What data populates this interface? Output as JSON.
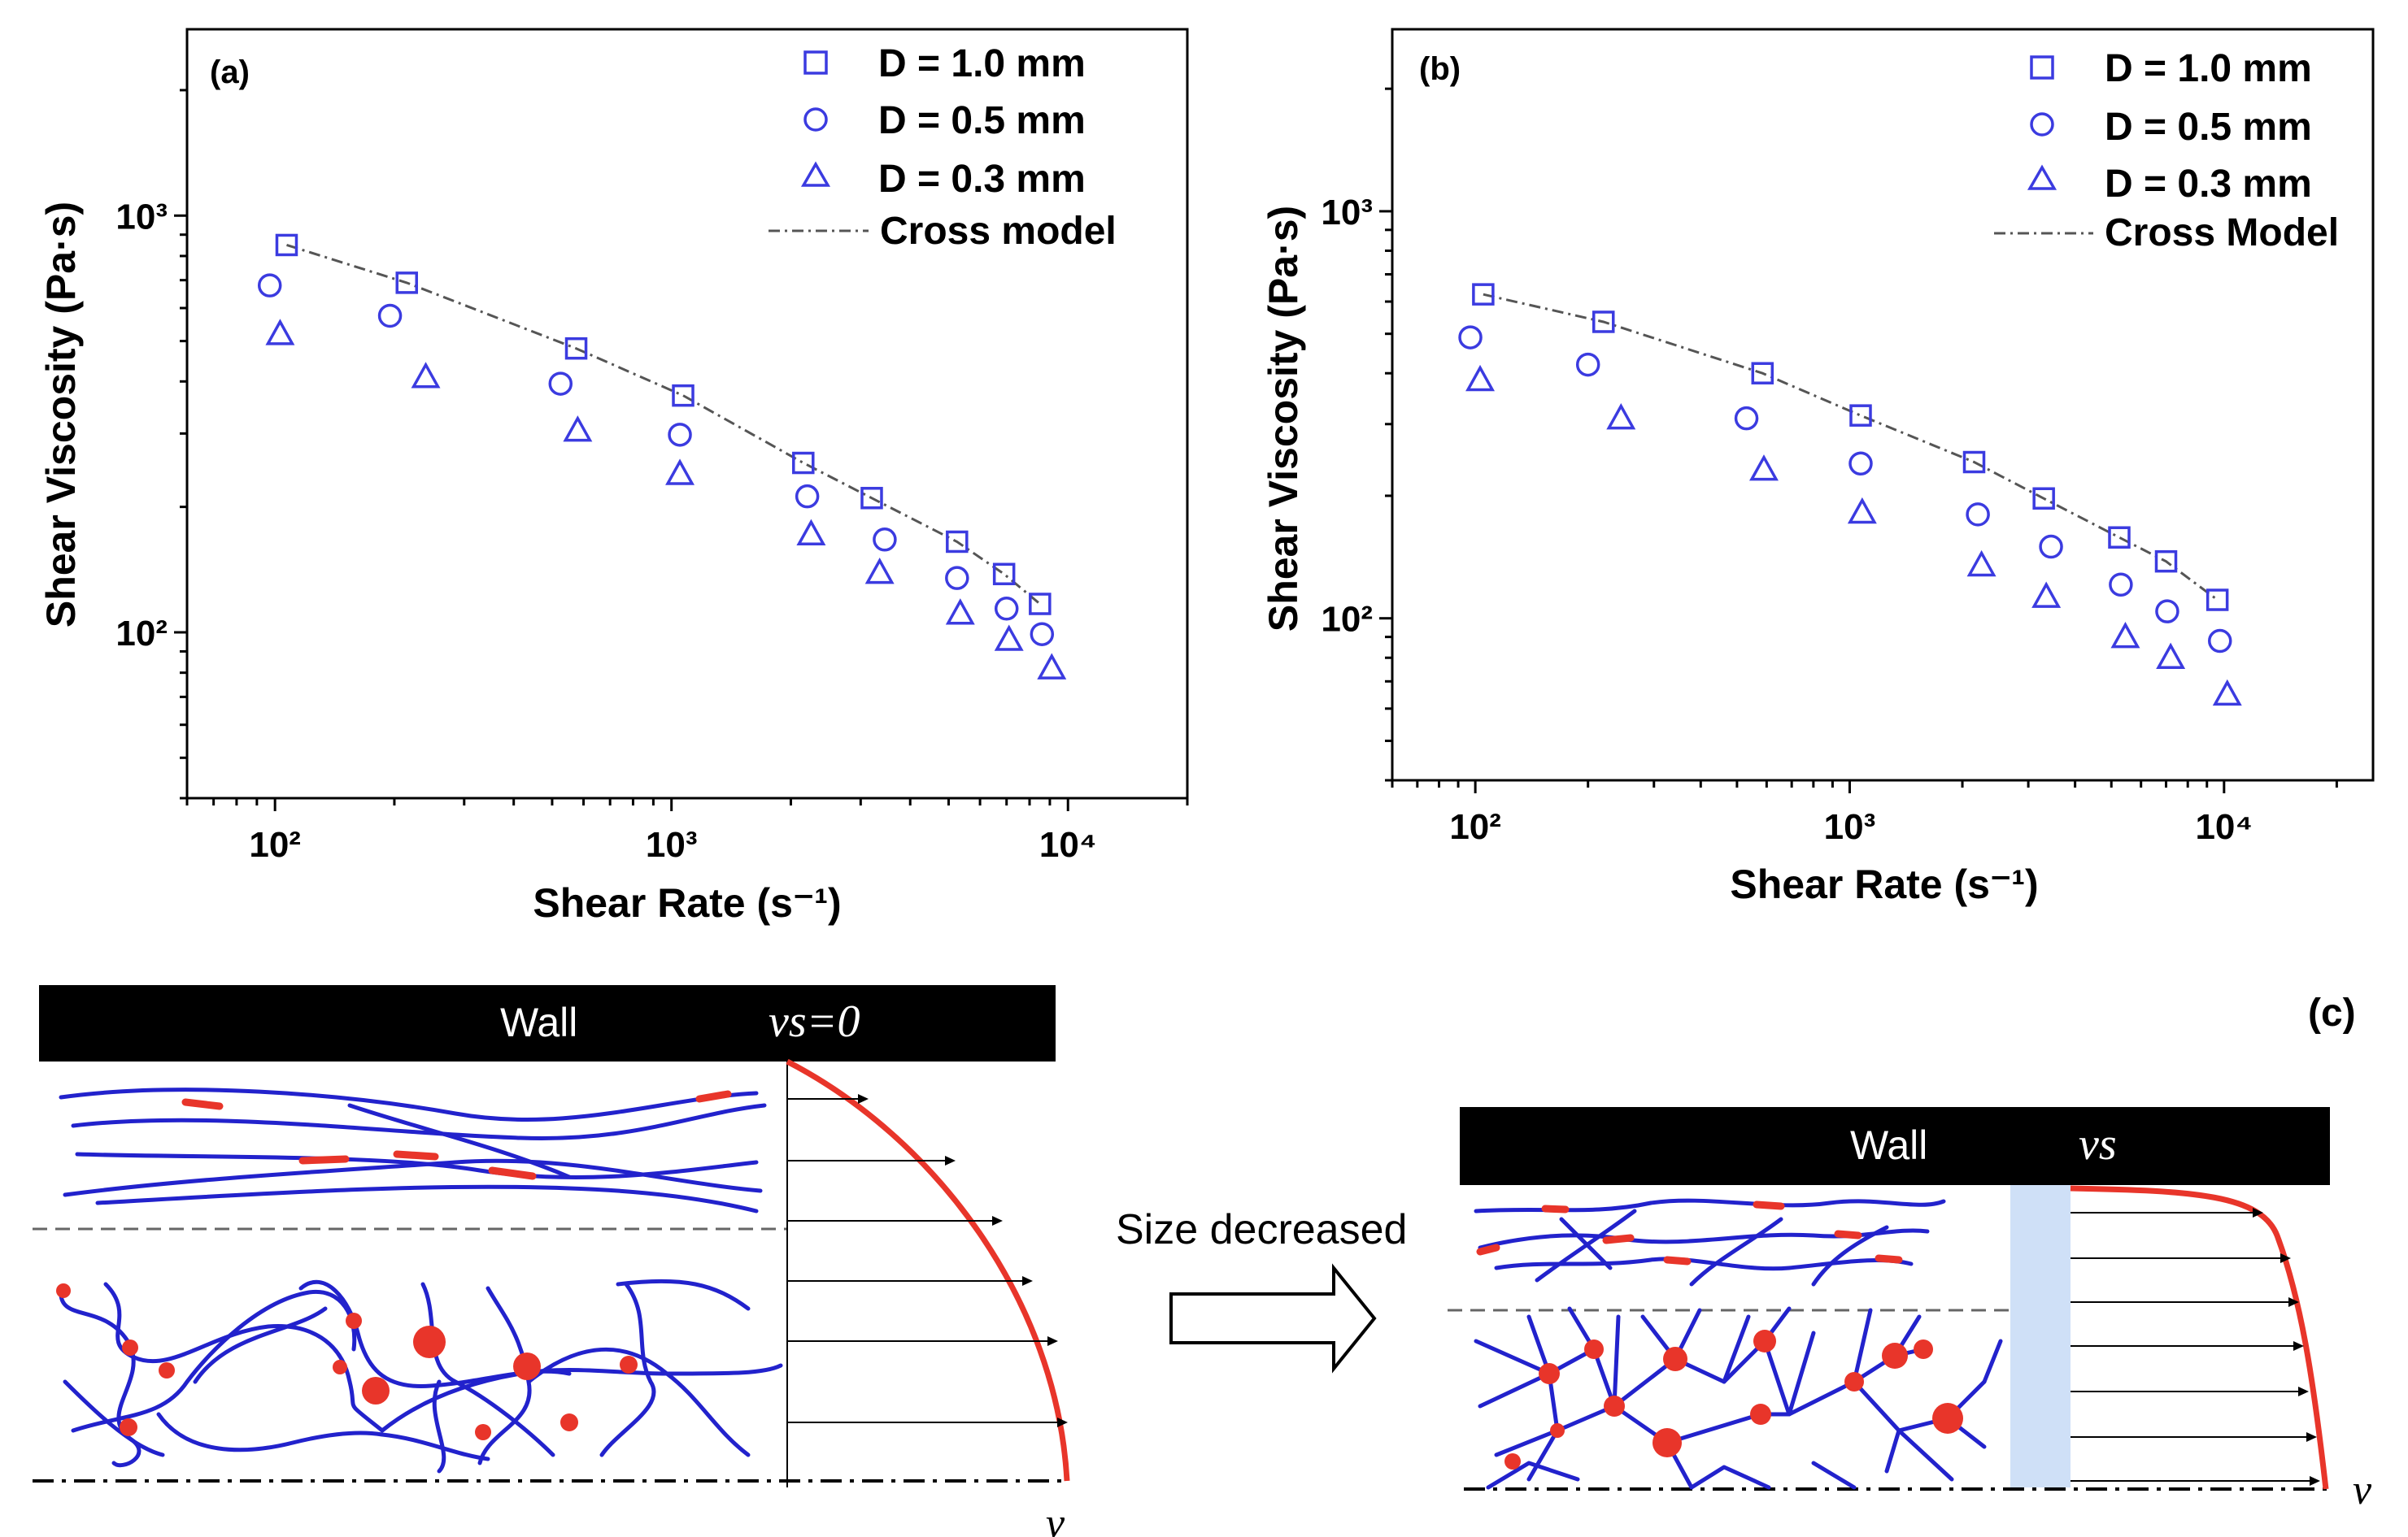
{
  "chart_data": [
    {
      "type": "scatter",
      "panel_label": "(a)",
      "xlabel": "Shear Rate (s⁻¹)",
      "ylabel": "Shear Viscosity (Pa·s)",
      "x_scale": "log",
      "y_scale": "log",
      "xlim": [
        60,
        20000
      ],
      "ylim": [
        40,
        2800
      ],
      "x_ticks": [
        "10²",
        "10³",
        "10⁴"
      ],
      "y_ticks": [
        "10²",
        "10³"
      ],
      "legend_position": "top-right",
      "series": [
        {
          "name": "D = 1.0 mm",
          "marker": "square",
          "x": [
            107,
            215,
            575,
            1070,
            2150,
            3200,
            5250,
            6900,
            8500
          ],
          "y": [
            850,
            690,
            480,
            370,
            255,
            210,
            165,
            138,
            117
          ]
        },
        {
          "name": "D = 0.5 mm",
          "marker": "circle",
          "x": [
            97,
            195,
            525,
            1050,
            2200,
            3450,
            5250,
            7000,
            8600
          ],
          "y": [
            680,
            575,
            395,
            298,
            212,
            167,
            135,
            114,
            99
          ]
        },
        {
          "name": "D = 0.3 mm",
          "marker": "triangle",
          "x": [
            103,
            240,
            580,
            1050,
            2250,
            3350,
            5350,
            7100,
            9100
          ],
          "y": [
            520,
            410,
            305,
            240,
            172,
            139,
            111,
            96,
            82
          ]
        },
        {
          "name": "Cross model",
          "style": "dash-dot line",
          "x": [
            107,
            215,
            575,
            1070,
            2150,
            3200,
            5250,
            6900,
            8500
          ],
          "y": [
            850,
            690,
            480,
            370,
            255,
            210,
            165,
            138,
            117
          ]
        }
      ]
    },
    {
      "type": "scatter",
      "panel_label": "(b)",
      "xlabel": "Shear Rate (s⁻¹)",
      "ylabel": "Shear Viscosity (Pa·s)",
      "x_scale": "log",
      "y_scale": "log",
      "xlim": [
        60,
        25000
      ],
      "ylim": [
        40,
        2800
      ],
      "x_ticks": [
        "10²",
        "10³",
        "10⁴"
      ],
      "y_ticks": [
        "10²",
        "10³"
      ],
      "legend_position": "top-right",
      "series": [
        {
          "name": "D = 1.0 mm",
          "marker": "square",
          "x": [
            105,
            220,
            585,
            1070,
            2150,
            3300,
            5250,
            7000,
            9600
          ],
          "y": [
            625,
            535,
            400,
            315,
            242,
            197,
            158,
            138,
            111
          ]
        },
        {
          "name": "D = 0.5 mm",
          "marker": "circle",
          "x": [
            97,
            200,
            530,
            1070,
            2200,
            3450,
            5300,
            7050,
            9750
          ],
          "y": [
            490,
            420,
            310,
            240,
            180,
            150,
            121,
            104,
            88
          ]
        },
        {
          "name": "D = 0.3 mm",
          "marker": "triangle",
          "x": [
            103,
            245,
            590,
            1080,
            2250,
            3350,
            5450,
            7200,
            10200
          ],
          "y": [
            385,
            310,
            232,
            182,
            135,
            113,
            90,
            80,
            65
          ]
        },
        {
          "name": "Cross Model",
          "style": "dash-dot line",
          "x": [
            105,
            220,
            585,
            1070,
            2150,
            3300,
            5250,
            7000,
            9600
          ],
          "y": [
            625,
            535,
            400,
            315,
            242,
            197,
            158,
            138,
            111
          ]
        }
      ]
    }
  ],
  "schematic": {
    "panel_label": "(c)",
    "left_wall_label": "Wall",
    "left_wall_velocity": "vs=0",
    "right_wall_label": "Wall",
    "right_wall_velocity": "vs",
    "arrow_label": "Size decreased",
    "velocity_axis_label": "v",
    "colors": {
      "chain": "#2222cc",
      "crosslink": "#e8352a",
      "wall": "#000000",
      "slip_layer": "#cfe0f7"
    }
  }
}
